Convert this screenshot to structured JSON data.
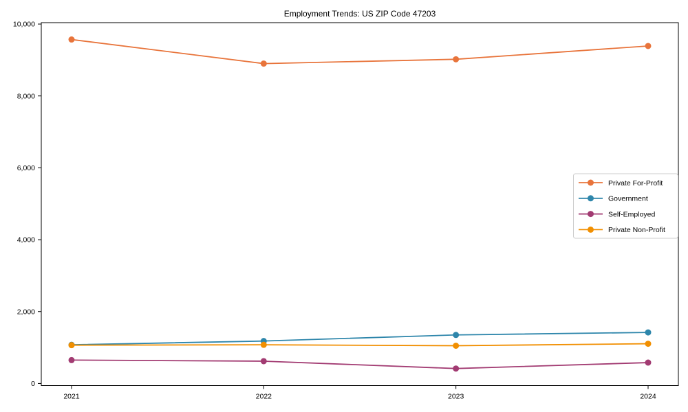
{
  "title": "Employment Trends: US ZIP Code 47203",
  "chart_data": {
    "type": "line",
    "title": "Employment Trends: US ZIP Code 47203",
    "x": [
      2021,
      2022,
      2023,
      2024
    ],
    "xtick_labels": [
      "2021",
      "2022",
      "2023",
      "2024"
    ],
    "yticks": [
      0,
      2000,
      4000,
      6000,
      8000,
      10000
    ],
    "ytick_labels": [
      "0",
      "2,000",
      "4,000",
      "6,000",
      "8,000",
      "10,000"
    ],
    "ylim": [
      0,
      10000
    ],
    "xlabel": "",
    "ylabel": "",
    "grid": false,
    "legend_position": "center-right",
    "series": [
      {
        "name": "Private For-Profit",
        "color": "#e8743b",
        "values": [
          9570,
          8900,
          9020,
          9390
        ]
      },
      {
        "name": "Government",
        "color": "#2e86ab",
        "values": [
          1075,
          1180,
          1350,
          1420
        ]
      },
      {
        "name": "Self-Employed",
        "color": "#a23b72",
        "values": [
          650,
          620,
          415,
          580
        ]
      },
      {
        "name": "Private Non-Profit",
        "color": "#f18f01",
        "values": [
          1065,
          1075,
          1050,
          1105
        ]
      }
    ]
  }
}
